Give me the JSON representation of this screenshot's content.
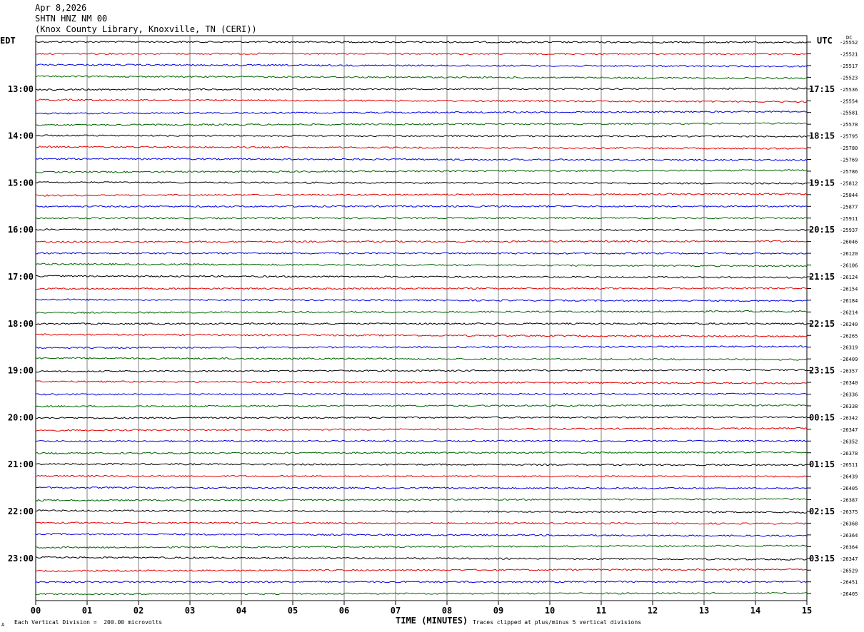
{
  "header": {
    "date": "Apr 8,2026",
    "station": "SHTN HNZ NM 00",
    "location": "(Knox County Library, Knoxville, TN (CERI))"
  },
  "left_timezone": "EDT",
  "right_timezone": "UTC",
  "dc_label": "DC",
  "footer": {
    "scale": "Each Vertical Division =  200.00 microvolts",
    "clip": "Traces clipped at plus/minus 5 vertical divisions",
    "mark": "A"
  },
  "colors": {
    "trace_cycle": [
      "#000000",
      "#e00000",
      "#0000e0",
      "#006400"
    ],
    "grid": "#808080"
  },
  "chart_data": {
    "type": "line",
    "title": "SHTN HNZ NM 00",
    "xlabel": "TIME (MINUTES)",
    "xlim": [
      0,
      15
    ],
    "x_ticks": [
      "00",
      "01",
      "02",
      "03",
      "04",
      "05",
      "06",
      "07",
      "08",
      "09",
      "10",
      "11",
      "12",
      "13",
      "14",
      "15"
    ],
    "left_time_labels": [
      "13:00",
      "14:00",
      "15:00",
      "16:00",
      "17:00",
      "18:00",
      "19:00",
      "20:00",
      "21:00",
      "22:00",
      "23:00"
    ],
    "right_time_labels": [
      "17:15",
      "18:15",
      "19:15",
      "20:15",
      "21:15",
      "22:15",
      "23:15",
      "00:15",
      "01:15",
      "02:15",
      "03:15"
    ],
    "dc_offsets": [
      "-25552",
      "-25521",
      "-25517",
      "-25523",
      "-25536",
      "-25554",
      "-25581",
      "-25578",
      "-25795",
      "-25780",
      "-25769",
      "-25786",
      "-25812",
      "-25844",
      "-25877",
      "-25911",
      "-25937",
      "-26046",
      "-26120",
      "-26106",
      "-26124",
      "-26154",
      "-26184",
      "-26214",
      "-26240",
      "-26265",
      "-26319",
      "-26409",
      "-26357",
      "-26340",
      "-26336",
      "-26338",
      "-26342",
      "-26347",
      "-26352",
      "-26378",
      "-26511",
      "-26439",
      "-26405",
      "-26387",
      "-26375",
      "-26368",
      "-26364",
      "-26364",
      "-26347",
      "-26529",
      "-26451",
      "-26405"
    ]
  }
}
